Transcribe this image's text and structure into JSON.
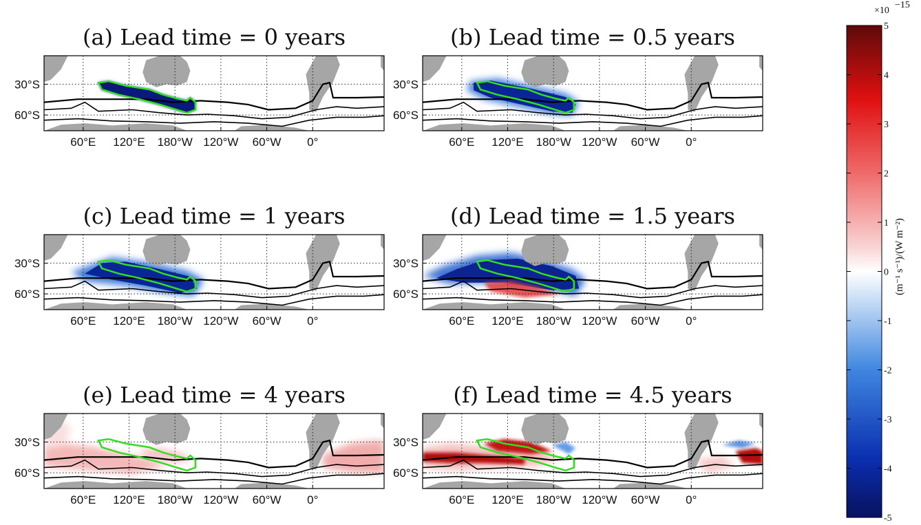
{
  "figure": {
    "colorbar": {
      "min": -5,
      "max": 5,
      "ticks": [
        "5",
        "4",
        "3",
        "2",
        "1",
        "0",
        "-1",
        "-2",
        "-3",
        "-4",
        "-5"
      ],
      "exponent_label": "×10",
      "exponent_power": "−15",
      "label": "(m⁻¹ s⁻¹)/(W m⁻²)",
      "colors": {
        "low": "#08115e",
        "mid": "#ffffff",
        "high": "#5e0a0a"
      }
    },
    "colors": {
      "land": "#a6a6a6",
      "contour": "#000000",
      "region_outline": "#33dd22"
    }
  },
  "chart_data": [
    {
      "type": "heatmap",
      "title": "(a) Lead time = 0 years",
      "x_ticks": [
        "60°E",
        "120°E",
        "180°W",
        "120°W",
        "60°W",
        "0°"
      ],
      "y_ticks": [
        "30°S",
        "60°S"
      ],
      "grid": true,
      "lead_time_years": 0
    },
    {
      "type": "heatmap",
      "title": "(b) Lead time = 0.5 years",
      "x_ticks": [
        "60°E",
        "120°E",
        "180°W",
        "120°W",
        "60°W",
        "0°"
      ],
      "y_ticks": [
        "30°S",
        "60°S"
      ],
      "grid": true,
      "lead_time_years": 0.5
    },
    {
      "type": "heatmap",
      "title": "(c) Lead time = 1 years",
      "x_ticks": [
        "60°E",
        "120°E",
        "180°W",
        "120°W",
        "60°W",
        "0°"
      ],
      "y_ticks": [
        "30°S",
        "60°S"
      ],
      "grid": true,
      "lead_time_years": 1
    },
    {
      "type": "heatmap",
      "title": "(d) Lead time = 1.5 years",
      "x_ticks": [
        "60°E",
        "120°E",
        "180°W",
        "120°W",
        "60°W",
        "0°"
      ],
      "y_ticks": [
        "30°S",
        "60°S"
      ],
      "grid": true,
      "lead_time_years": 1.5
    },
    {
      "type": "heatmap",
      "title": "(e) Lead time = 4 years",
      "x_ticks": [
        "60°E",
        "120°E",
        "180°W",
        "120°W",
        "60°W",
        "0°"
      ],
      "y_ticks": [
        "30°S",
        "60°S"
      ],
      "grid": true,
      "lead_time_years": 4
    },
    {
      "type": "heatmap",
      "title": "(f) Lead time = 4.5 years",
      "x_ticks": [
        "60°E",
        "120°E",
        "180°W",
        "120°W",
        "60°W",
        "0°"
      ],
      "y_ticks": [
        "30°S",
        "60°S"
      ],
      "grid": true,
      "lead_time_years": 4.5
    }
  ]
}
